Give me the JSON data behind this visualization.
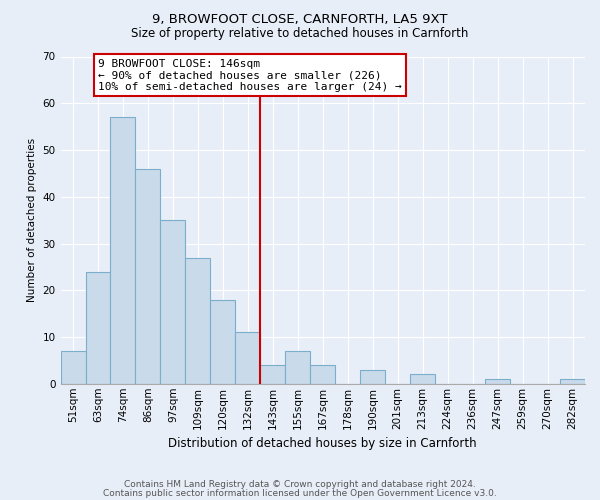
{
  "title": "9, BROWFOOT CLOSE, CARNFORTH, LA5 9XT",
  "subtitle": "Size of property relative to detached houses in Carnforth",
  "xlabel": "Distribution of detached houses by size in Carnforth",
  "ylabel": "Number of detached properties",
  "bar_labels": [
    "51sqm",
    "63sqm",
    "74sqm",
    "86sqm",
    "97sqm",
    "109sqm",
    "120sqm",
    "132sqm",
    "143sqm",
    "155sqm",
    "167sqm",
    "178sqm",
    "190sqm",
    "201sqm",
    "213sqm",
    "224sqm",
    "236sqm",
    "247sqm",
    "259sqm",
    "270sqm",
    "282sqm"
  ],
  "bar_values": [
    7,
    24,
    57,
    46,
    35,
    27,
    18,
    11,
    4,
    7,
    4,
    0,
    3,
    0,
    2,
    0,
    0,
    1,
    0,
    0,
    1
  ],
  "bar_color": "#c9daea",
  "bar_edgecolor": "#7aaeca",
  "vline_index": 8,
  "vline_color": "#cc0000",
  "annotation_line1": "9 BROWFOOT CLOSE: 146sqm",
  "annotation_line2": "← 90% of detached houses are smaller (226)",
  "annotation_line3": "10% of semi-detached houses are larger (24) →",
  "annotation_box_facecolor": "#ffffff",
  "annotation_box_edgecolor": "#cc0000",
  "ylim": [
    0,
    70
  ],
  "yticks": [
    0,
    10,
    20,
    30,
    40,
    50,
    60,
    70
  ],
  "footer1": "Contains HM Land Registry data © Crown copyright and database right 2024.",
  "footer2": "Contains public sector information licensed under the Open Government Licence v3.0.",
  "background_color": "#e8eef8",
  "grid_color": "#ffffff",
  "title_fontsize": 9.5,
  "subtitle_fontsize": 8.5,
  "xlabel_fontsize": 8.5,
  "ylabel_fontsize": 7.5,
  "tick_fontsize": 7.5,
  "footer_fontsize": 6.5
}
